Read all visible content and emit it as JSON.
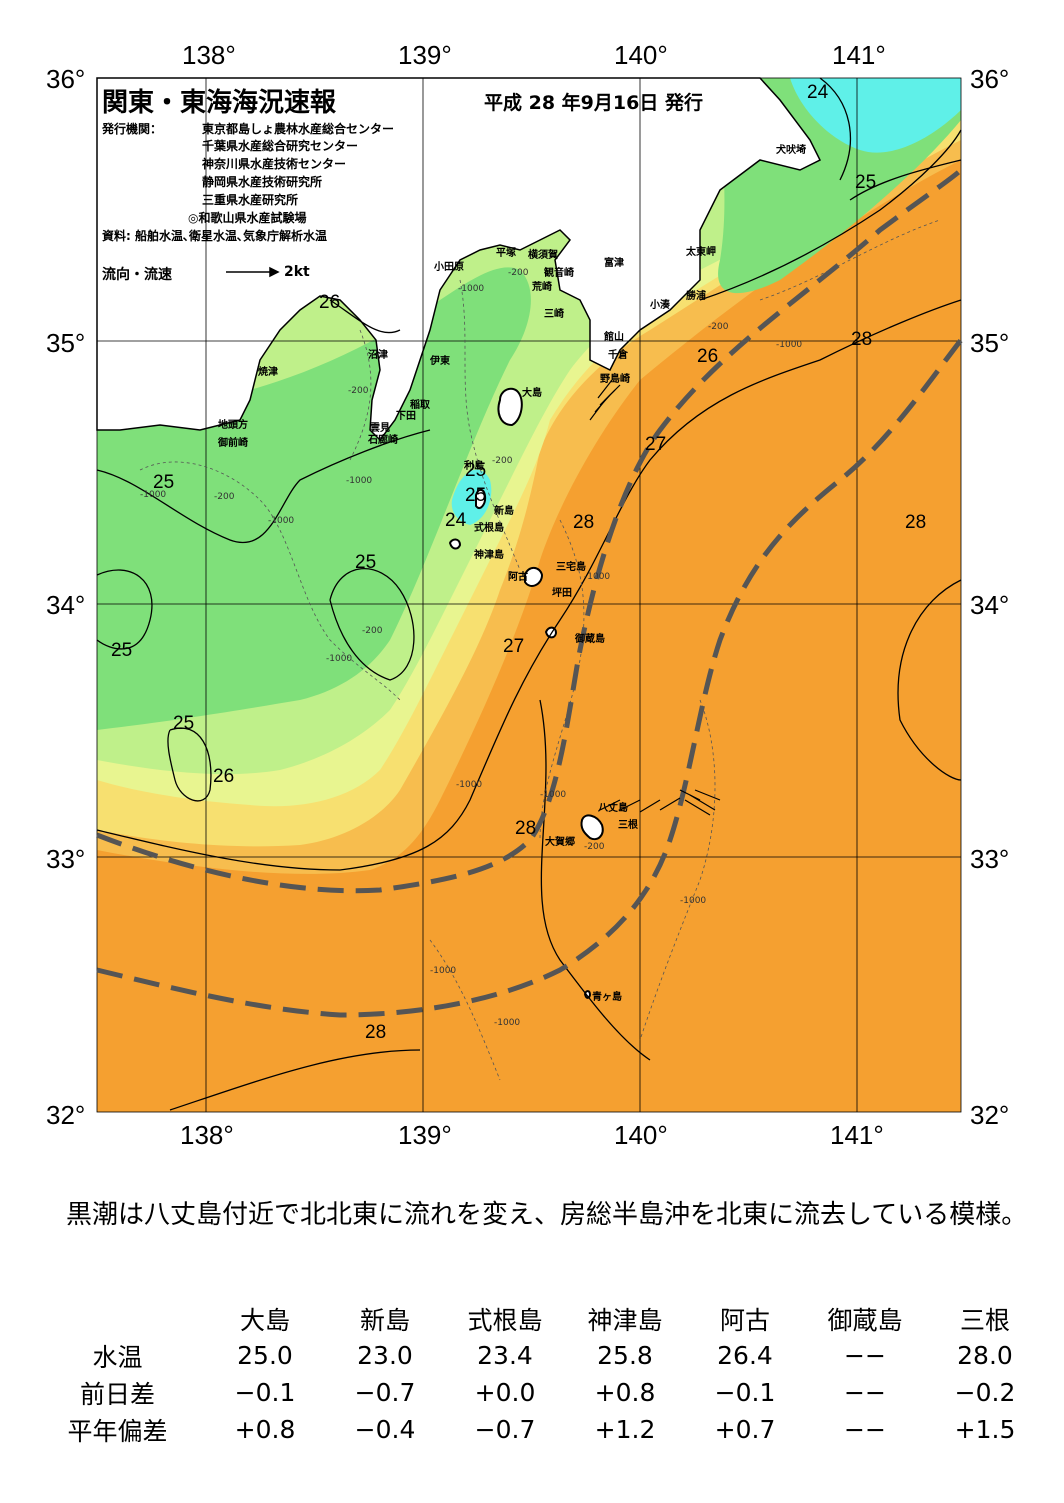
{
  "header": {
    "title": "関東・東海海況速報",
    "issued": "平成 28 年9月16日 発行"
  },
  "publisher": {
    "label": "発行機関：",
    "orgs": [
      "東京都島しょ農林水産総合センター",
      "千葉県水産総合研究センター",
      "神奈川県水産技術センター",
      "静岡県水産技術研究所",
      "三重県水産研究所",
      "◎和歌山県水産試験場"
    ],
    "sources": "資料: 船舶水温､衛星水温､気象庁解析水温"
  },
  "legend": {
    "flow_label": "流向・流速",
    "speed_label": "2kt"
  },
  "axes": {
    "lon_ticks": [
      "138°",
      "139°",
      "140°",
      "141°"
    ],
    "lat_ticks": [
      "36°",
      "35°",
      "34°",
      "33°",
      "32°"
    ]
  },
  "places": [
    "小田原",
    "平塚",
    "横須賀",
    "観音崎",
    "荒崎",
    "三崎",
    "富津",
    "館山",
    "千倉",
    "野島崎",
    "太東岬",
    "勝浦",
    "小湊",
    "犬吠埼",
    "沼津",
    "焼津",
    "伊東",
    "稲取",
    "下田",
    "雲見",
    "石廊崎",
    "地頭方",
    "御前崎",
    "大島",
    "利島",
    "新島",
    "式根島",
    "神津島",
    "阿古",
    "三宅島",
    "坪田",
    "御蔵島",
    "八丈島",
    "三根",
    "大賀郷",
    "青ヶ島"
  ],
  "isotherm_labels": [
    "24",
    "25",
    "26",
    "25",
    "28",
    "26",
    "27",
    "25",
    "24",
    "28",
    "25",
    "28",
    "25",
    "27",
    "25",
    "26",
    "28",
    "28",
    "25"
  ],
  "depth_labels": [
    "-200",
    "-1000"
  ],
  "comment": "　黒潮は八丈島付近で北北東に流れを変え、房総半島沖を北東に流去している模様。",
  "table": {
    "columns": [
      "大島",
      "新島",
      "式根島",
      "神津島",
      "阿古",
      "御蔵島",
      "三根"
    ],
    "rows": [
      {
        "label": "水温",
        "values": [
          "25.0",
          "23.0",
          "23.4",
          "25.8",
          "26.4",
          "−−",
          "28.0"
        ]
      },
      {
        "label": "前日差",
        "values": [
          "−0.1",
          "−0.7",
          "+0.0",
          "+0.8",
          "−0.1",
          "−−",
          "−0.2"
        ]
      },
      {
        "label": "平年偏差",
        "values": [
          "+0.8",
          "−0.4",
          "−0.7",
          "+1.2",
          "+0.7",
          "−−",
          "+1.5"
        ]
      }
    ]
  },
  "colors": {
    "warm": "#f5a030",
    "orange_light": "#f7bd4e",
    "yellow": "#f7e070",
    "yellow_green": "#e8f590",
    "light_green": "#bff08a",
    "green": "#7fe07a",
    "cyan": "#5ff0e8",
    "land": "#ffffff",
    "kuroshio_axis": "#555555"
  }
}
